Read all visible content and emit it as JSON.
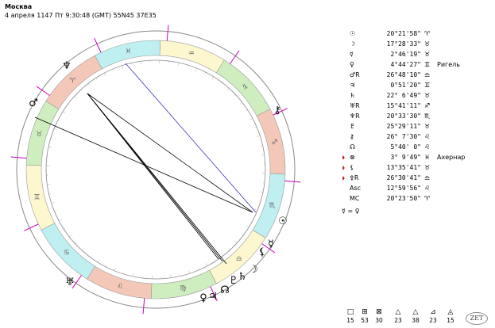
{
  "header": {
    "city": "Москва",
    "datetime": "4 апреля 1147  Пт   9:30:48 (GMT) 55N45  37E35"
  },
  "colors": {
    "fire": "#f4c8b8",
    "earth": "#cfeec0",
    "air": "#fdf7d0",
    "water": "#bfeff0",
    "ring": "#888888",
    "aspect_black": "#000000",
    "aspect_blue": "#3030c0",
    "marker_magenta": "#d000c0",
    "marker_teal": "#1a8a8a"
  },
  "wheel_signs": [
    {
      "name": "aries",
      "glyph": "♈",
      "element": "fire"
    },
    {
      "name": "taurus",
      "glyph": "♉",
      "element": "earth"
    },
    {
      "name": "gemini",
      "glyph": "♊",
      "element": "air"
    },
    {
      "name": "cancer",
      "glyph": "♋",
      "element": "water"
    },
    {
      "name": "leo",
      "glyph": "♌",
      "element": "fire"
    },
    {
      "name": "virgo",
      "glyph": "♍",
      "element": "earth"
    },
    {
      "name": "libra",
      "glyph": "♎",
      "element": "air"
    },
    {
      "name": "scorpio",
      "glyph": "♏",
      "element": "water"
    },
    {
      "name": "sagittarius",
      "glyph": "♐",
      "element": "fire"
    },
    {
      "name": "capricorn",
      "glyph": "♑",
      "element": "earth"
    },
    {
      "name": "aquarius",
      "glyph": "♒",
      "element": "air"
    },
    {
      "name": "pisces",
      "glyph": "♓",
      "element": "water"
    }
  ],
  "wheel_planets": [
    {
      "name": "sun",
      "glyph": "☉"
    },
    {
      "name": "moon",
      "glyph": "☽"
    },
    {
      "name": "mercury",
      "glyph": "☿"
    },
    {
      "name": "venus",
      "glyph": "♀"
    },
    {
      "name": "mars",
      "glyph": "♂"
    },
    {
      "name": "jupiter",
      "glyph": "♃"
    },
    {
      "name": "saturn",
      "glyph": "♄"
    },
    {
      "name": "uranus",
      "glyph": "♅"
    },
    {
      "name": "neptune",
      "glyph": "♆"
    },
    {
      "name": "pluto",
      "glyph": "♇"
    },
    {
      "name": "chiron",
      "glyph": "⚷"
    },
    {
      "name": "node",
      "glyph": "☊"
    },
    {
      "name": "lilith",
      "glyph": "⚸"
    }
  ],
  "planets": [
    {
      "name": "sun",
      "glyph": "☉",
      "marker": "",
      "deg": "20°21'58\"",
      "sign": "♈",
      "star": ""
    },
    {
      "name": "moon",
      "glyph": "☽",
      "marker": "",
      "deg": "17°28'33\"",
      "sign": "♉",
      "star": ""
    },
    {
      "name": "mercury",
      "glyph": "☿",
      "marker": "",
      "deg": "2°46'19\"",
      "sign": "♉",
      "star": ""
    },
    {
      "name": "venus",
      "glyph": "♀",
      "marker": "",
      "deg": "4°44'27\"",
      "sign": "♊",
      "star": "Ригель"
    },
    {
      "name": "mars",
      "glyph": "♂R",
      "marker": "",
      "deg": "26°48'10\"",
      "sign": "♎",
      "star": ""
    },
    {
      "name": "jupiter",
      "glyph": "♃",
      "marker": "",
      "deg": "0°51'20\"",
      "sign": "♊",
      "star": ""
    },
    {
      "name": "saturn",
      "glyph": "♄",
      "marker": "",
      "deg": "22° 6'49\"",
      "sign": "♉",
      "star": ""
    },
    {
      "name": "uranus",
      "glyph": "♅R",
      "marker": "",
      "deg": "15°41'11\"",
      "sign": "♐",
      "star": ""
    },
    {
      "name": "neptune",
      "glyph": "♆R",
      "marker": "",
      "deg": "20°33'30\"",
      "sign": "♏",
      "star": ""
    },
    {
      "name": "pluto",
      "glyph": "♇",
      "marker": "",
      "deg": "25°29'11\"",
      "sign": "♉",
      "star": ""
    },
    {
      "name": "chiron",
      "glyph": "⚷",
      "marker": "",
      "deg": "26° 7'30\"",
      "sign": "♌",
      "star": ""
    },
    {
      "name": "node",
      "glyph": "☊",
      "marker": "",
      "deg": "5°40' 0\"",
      "sign": "♌",
      "star": ""
    },
    {
      "name": "part-of-fortune",
      "glyph": "⊗",
      "marker": "◗",
      "deg": "3° 9'49\"",
      "sign": "♓",
      "star": "Ахернар"
    },
    {
      "name": "lilith",
      "glyph": "⚸",
      "marker": "◗",
      "deg": "13°35'41\"",
      "sign": "♉",
      "star": ""
    },
    {
      "name": "selena",
      "glyph": "⚴R",
      "marker": "◗",
      "deg": "26°30'41\"",
      "sign": "♎",
      "star": ""
    },
    {
      "name": "ascendant",
      "glyph": "Asc",
      "marker": "",
      "deg": "12°59'56\"",
      "sign": "♌",
      "star": ""
    },
    {
      "name": "midheaven",
      "glyph": "MC",
      "marker": "",
      "deg": "20°23'50\"",
      "sign": "♈",
      "star": ""
    }
  ],
  "aspect_note": "☿ = ♀",
  "legend": [
    {
      "name": "square-box",
      "icon": "□",
      "count": "15"
    },
    {
      "name": "grid-box",
      "icon": "⊞",
      "count": "53"
    },
    {
      "name": "cross-box",
      "icon": "⊠",
      "count": "30"
    },
    {
      "name": "triangle",
      "icon": "△",
      "count": "23"
    },
    {
      "name": "triangle-2",
      "icon": "△",
      "count": "38"
    },
    {
      "name": "triangle-3",
      "icon": "⊿",
      "count": "23"
    },
    {
      "name": "triangle-4",
      "icon": "◬",
      "count": "15"
    }
  ],
  "zet_label": "ZET"
}
